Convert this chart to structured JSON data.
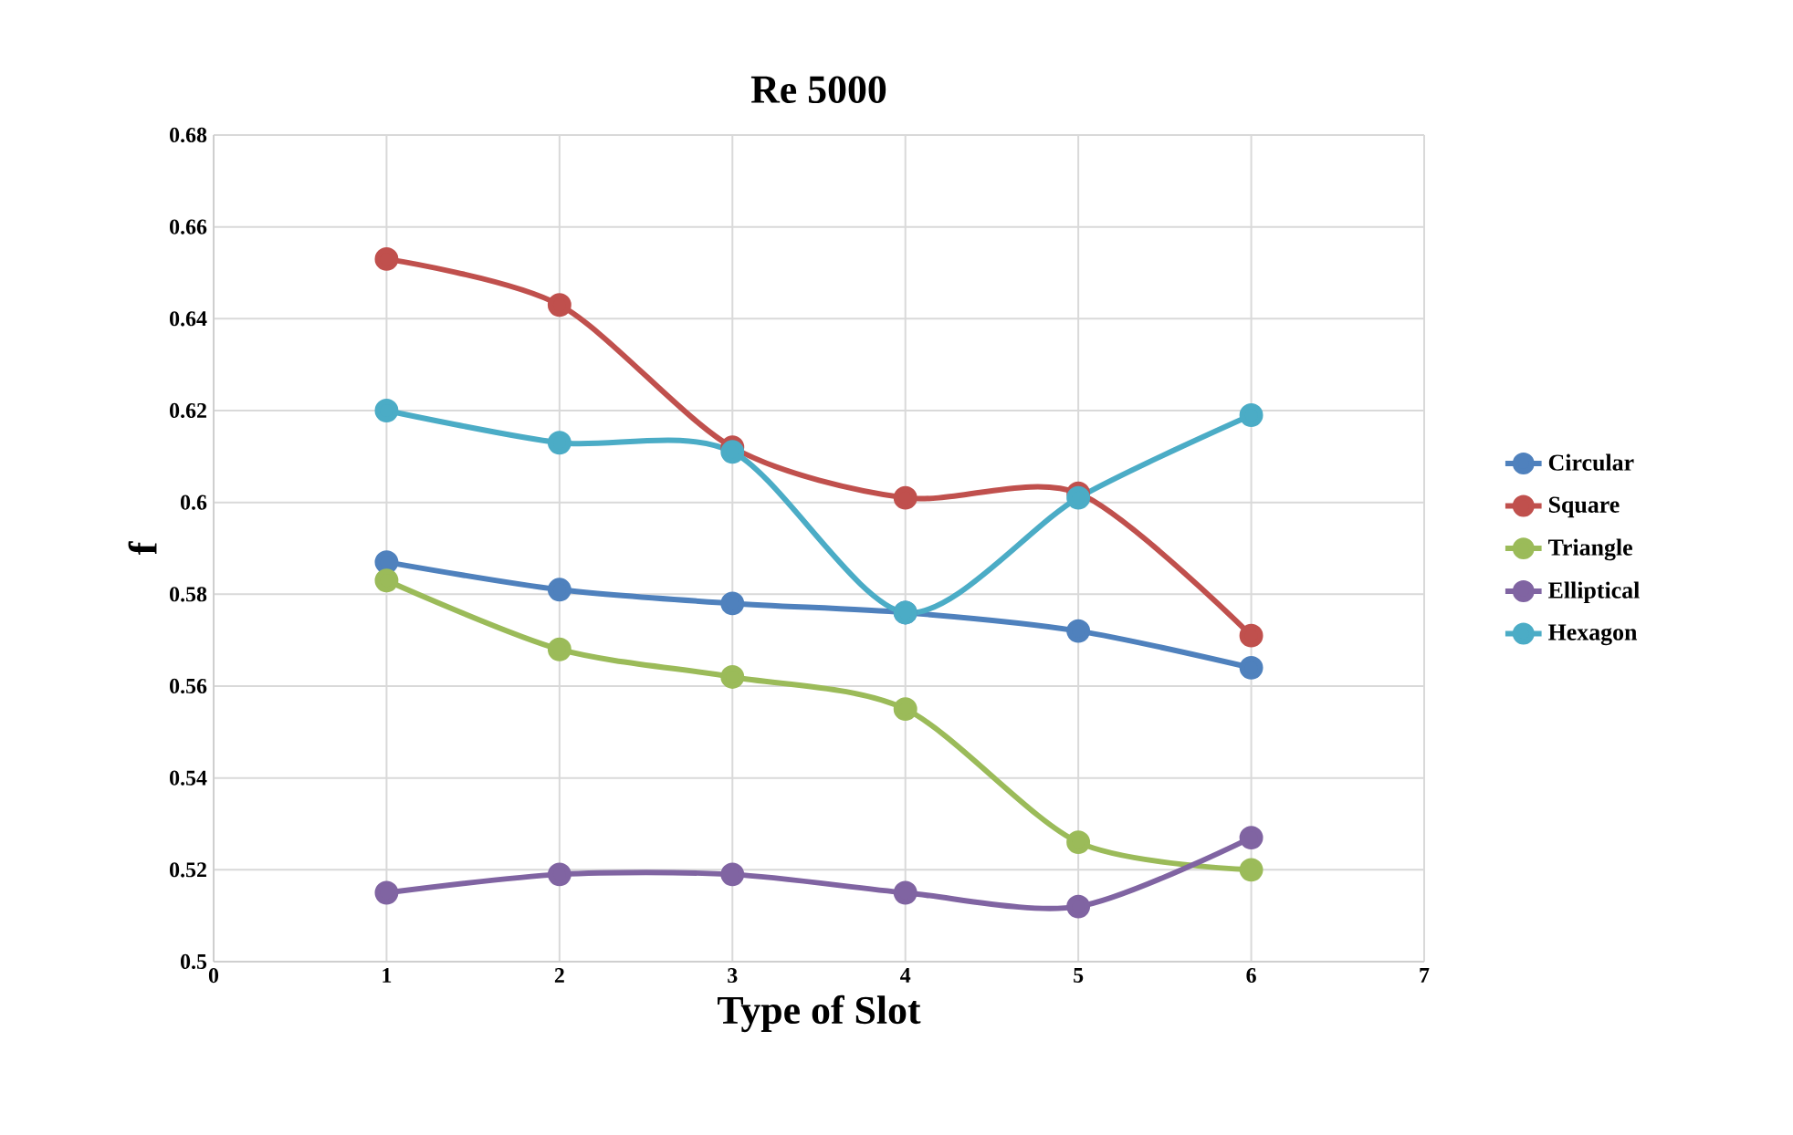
{
  "chart_data": {
    "type": "line",
    "title": "Re 5000",
    "xlabel": "Type of Slot",
    "ylabel": "f",
    "x": [
      1,
      2,
      3,
      4,
      5,
      6
    ],
    "series": [
      {
        "name": "Circular",
        "color": "#4f81bd",
        "values": [
          0.587,
          0.581,
          0.578,
          0.576,
          0.572,
          0.564
        ]
      },
      {
        "name": "Square",
        "color": "#c0504d",
        "values": [
          0.653,
          0.643,
          0.612,
          0.601,
          0.602,
          0.571
        ]
      },
      {
        "name": "Triangle",
        "color": "#9bbb59",
        "values": [
          0.583,
          0.568,
          0.562,
          0.555,
          0.526,
          0.52
        ]
      },
      {
        "name": "Elliptical",
        "color": "#8064a2",
        "values": [
          0.515,
          0.519,
          0.519,
          0.515,
          0.512,
          0.527
        ]
      },
      {
        "name": "Hexagon",
        "color": "#4bacc6",
        "values": [
          0.62,
          0.613,
          0.611,
          0.576,
          0.601,
          0.619
        ]
      }
    ],
    "xlim": [
      0,
      7
    ],
    "xticks": [
      0,
      1,
      2,
      3,
      4,
      5,
      6,
      7
    ],
    "ylim": [
      0.5,
      0.68
    ],
    "yticks": [
      0.5,
      0.52,
      0.54,
      0.56,
      0.58,
      0.6,
      0.62,
      0.64,
      0.66,
      0.68
    ],
    "grid": true,
    "legend": "right",
    "marker": "circle",
    "line_style": "solid"
  }
}
